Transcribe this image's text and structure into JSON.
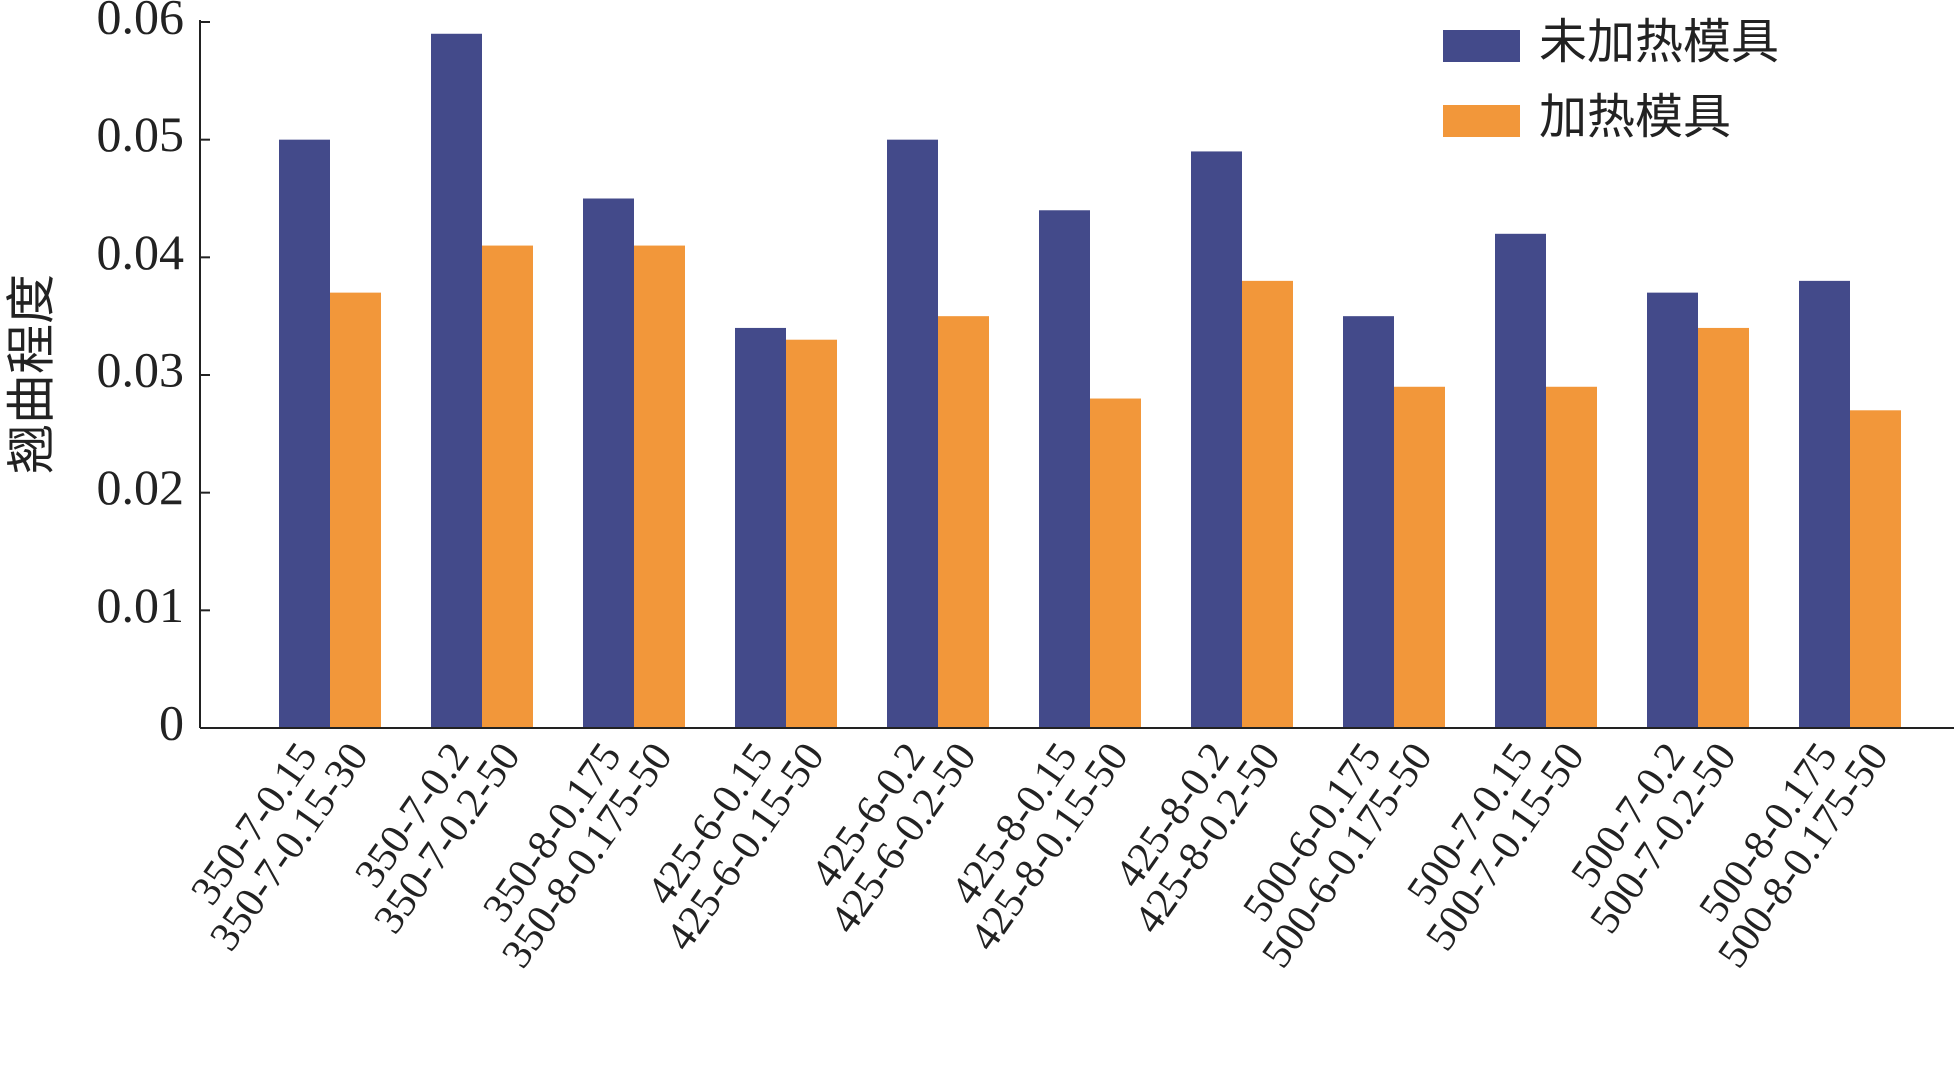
{
  "chart_data": {
    "type": "bar",
    "y_label": "翘曲程度",
    "categories": [
      "350-7-0.15",
      "350-7-0.2",
      "350-8-0.175",
      "425-6-0.15",
      "425-6-0.2",
      "425-8-0.15",
      "425-8-0.2",
      "500-6-0.175",
      "500-7-0.15",
      "500-7-0.2",
      "500-8-0.175"
    ],
    "series": [
      {
        "name": "未加热模具",
        "color": "#434a8a",
        "bar_labels": [
          "350-7-0.15",
          "350-7-0.2",
          "350-8-0.175",
          "425-6-0.15",
          "425-6-0.2",
          "425-8-0.15",
          "425-8-0.2",
          "500-6-0.175",
          "500-7-0.15",
          "500-7-0.2",
          "500-8-0.175"
        ],
        "values": [
          0.05,
          0.059,
          0.045,
          0.034,
          0.05,
          0.044,
          0.049,
          0.035,
          0.042,
          0.037,
          0.038
        ]
      },
      {
        "name": "加热模具",
        "color": "#f2973a",
        "bar_labels": [
          "350-7-0.15-30",
          "350-7-0.2-50",
          "350-8-0.175-50",
          "425-6-0.15-50",
          "425-6-0.2-50",
          "425-8-0.15-50",
          "425-8-0.2-50",
          "500-6-0.175-50",
          "500-7-0.15-50",
          "500-7-0.2-50",
          "500-8-0.175-50"
        ],
        "values": [
          0.037,
          0.041,
          0.041,
          0.033,
          0.035,
          0.028,
          0.038,
          0.029,
          0.029,
          0.034,
          0.027
        ]
      }
    ],
    "ylim": [
      0,
      0.06
    ],
    "yticks": [
      0,
      0.01,
      0.02,
      0.03,
      0.04,
      0.05,
      0.06
    ],
    "legend": "upper right"
  }
}
